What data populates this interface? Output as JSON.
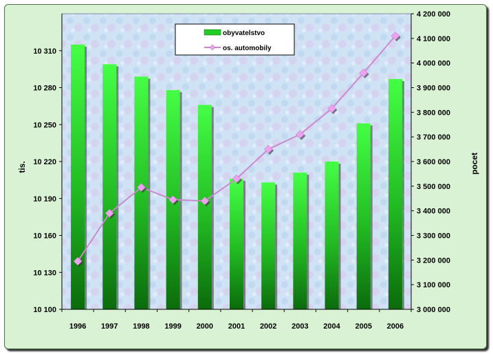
{
  "chart_data": {
    "type": "bar",
    "categories": [
      "1996",
      "1997",
      "1998",
      "1999",
      "2000",
      "2001",
      "2002",
      "2003",
      "2004",
      "2005",
      "2006"
    ],
    "series": [
      {
        "name": "obyvatelstvo",
        "type": "bar",
        "axis": "left",
        "color": "#33dd33",
        "values": [
          10315,
          10299,
          10289,
          10278,
          10266,
          10206,
          10203,
          10211,
          10220,
          10251,
          10287
        ]
      },
      {
        "name": "os. automobily",
        "type": "line",
        "axis": "right",
        "color": "#cc88cc",
        "marker_color": "#f0a0f0",
        "values": [
          3195000,
          3390000,
          3495000,
          3445000,
          3440000,
          3530000,
          3650000,
          3710000,
          3815000,
          3960000,
          4110000
        ]
      }
    ],
    "ylabel": "tis.",
    "y2label": "pocet",
    "ylim": [
      10100,
      10340
    ],
    "y2lim": [
      3000000,
      4200000
    ],
    "yticks": [
      "10 100",
      "10 130",
      "10 160",
      "10 190",
      "10 220",
      "10 250",
      "10 280",
      "10 310"
    ],
    "y2ticks": [
      "3 000 000",
      "3 100 000",
      "3 200 000",
      "3 300 000",
      "3 400 000",
      "3 500 000",
      "3 600 000",
      "3 700 000",
      "3 800 000",
      "3 900 000",
      "4 000 000",
      "4 100 000",
      "4 200 000"
    ],
    "legend_position": "top-center",
    "colors": {
      "frame_bg": "#d9f2d4",
      "bar_top": "#44ff44",
      "bar_bottom": "#0b6b0b",
      "line": "#cc88cc",
      "marker": "#f0a0f0"
    }
  }
}
